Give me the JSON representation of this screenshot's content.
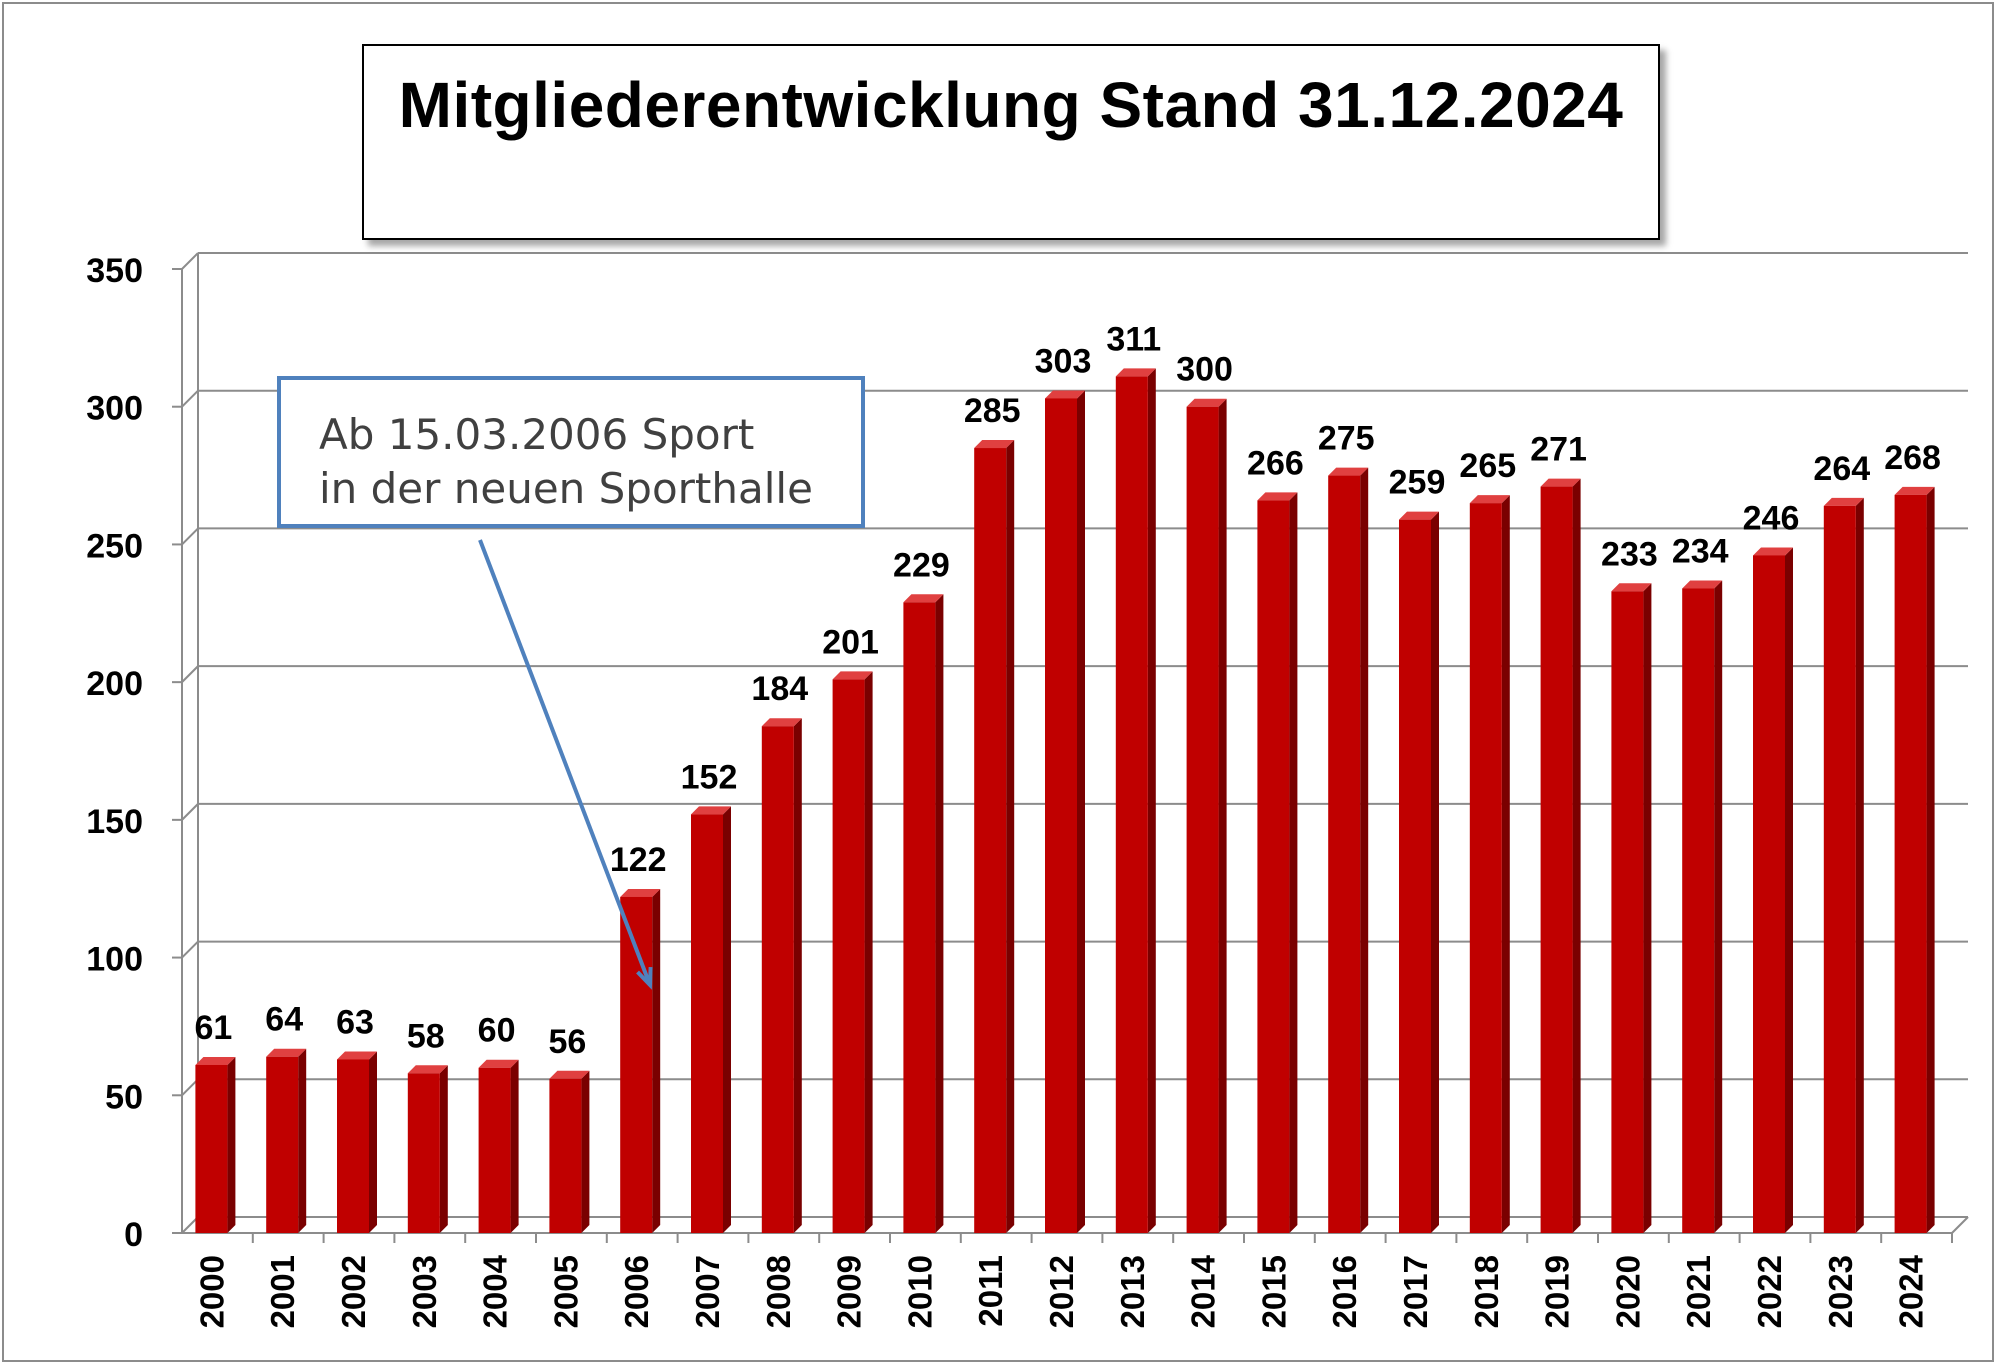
{
  "chart_data": {
    "type": "bar",
    "title": "Mitgliederentwicklung Stand 31.12.2024",
    "categories": [
      "2000",
      "2001",
      "2002",
      "2003",
      "2004",
      "2005",
      "2006",
      "2007",
      "2008",
      "2009",
      "2010",
      "2011",
      "2012",
      "2013",
      "2014",
      "2015",
      "2016",
      "2017",
      "2018",
      "2019",
      "2020",
      "2021",
      "2022",
      "2023",
      "2024"
    ],
    "values": [
      61,
      64,
      63,
      58,
      60,
      56,
      122,
      152,
      184,
      201,
      229,
      285,
      303,
      311,
      300,
      266,
      275,
      259,
      265,
      271,
      233,
      234,
      246,
      264,
      268
    ],
    "ylim": [
      0,
      350
    ],
    "yticks": [
      "0",
      "50",
      "100",
      "150",
      "200",
      "250",
      "300",
      "350"
    ],
    "grid": true,
    "bar_color": "#c00000",
    "annotation": {
      "line1": "Ab 15.03.2006 Sport",
      "line2": "in der neuen Sporthalle",
      "points_to": "2006",
      "border_color": "#4f81bd"
    }
  }
}
